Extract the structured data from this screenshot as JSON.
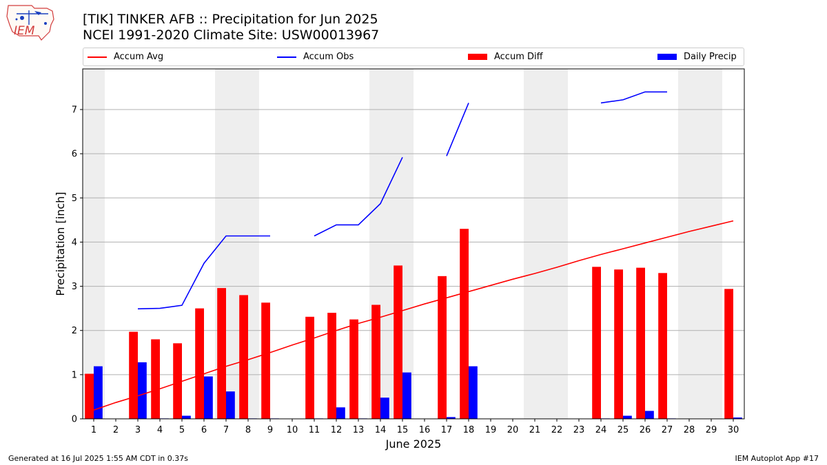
{
  "header": {
    "title": "[TIK] TINKER AFB :: Precipitation for Jun 2025",
    "subtitle": "NCEI 1991-2020 Climate Site: USW00013967",
    "logo_text": "IEM"
  },
  "footer": {
    "generated": "Generated at 16 Jul 2025 1:55 AM CDT in 0.37s",
    "app": "IEM Autoplot App #17"
  },
  "colors": {
    "accum_avg": "#ff0000",
    "accum_obs": "#0000ff",
    "accum_diff": "#ff0000",
    "daily_precip": "#0000ff",
    "weekend_shade": "#eeeeee",
    "grid": "#b0b0b0"
  },
  "chart_data": {
    "type": "bar",
    "xlabel": "June 2025",
    "ylabel": "Precipitation [inch]",
    "xlim": [
      0.5,
      30.5
    ],
    "ylim": [
      0,
      7.92
    ],
    "yticks": [
      0,
      1,
      2,
      3,
      4,
      5,
      6,
      7
    ],
    "grid": "horizontal",
    "legend_placement": "top, above plot",
    "categories": [
      1,
      2,
      3,
      4,
      5,
      6,
      7,
      8,
      9,
      10,
      11,
      12,
      13,
      14,
      15,
      16,
      17,
      18,
      19,
      20,
      21,
      22,
      23,
      24,
      25,
      26,
      27,
      28,
      29,
      30
    ],
    "shaded_days": [
      1,
      7,
      8,
      14,
      15,
      21,
      22,
      28,
      29
    ],
    "series": [
      {
        "name": "Accum Avg",
        "kind": "line",
        "color": "#ff0000",
        "values": [
          0.2,
          0.37,
          0.52,
          0.68,
          0.85,
          1.02,
          1.19,
          1.34,
          1.5,
          1.67,
          1.83,
          2.0,
          2.16,
          2.3,
          2.45,
          2.6,
          2.74,
          2.88,
          3.02,
          3.16,
          3.29,
          3.43,
          3.58,
          3.72,
          3.85,
          3.98,
          4.11,
          4.24,
          4.36,
          4.48
        ]
      },
      {
        "name": "Accum Obs",
        "kind": "line",
        "color": "#0000ff",
        "values": [
          null,
          null,
          2.49,
          2.5,
          2.57,
          3.52,
          4.14,
          4.14,
          4.14,
          null,
          4.14,
          4.39,
          4.39,
          4.87,
          5.92,
          null,
          5.95,
          7.15,
          null,
          null,
          null,
          null,
          null,
          7.15,
          7.22,
          7.4,
          7.4,
          null,
          null,
          null
        ]
      },
      {
        "name": "Accum Diff",
        "kind": "bar",
        "color": "#ff0000",
        "values": [
          1.02,
          0,
          1.97,
          1.8,
          1.71,
          2.5,
          2.96,
          2.8,
          2.63,
          0,
          2.31,
          2.4,
          2.25,
          2.58,
          3.47,
          0,
          3.23,
          4.3,
          0,
          0,
          0,
          0,
          0,
          3.44,
          3.38,
          3.42,
          3.3,
          0,
          0,
          2.94
        ]
      },
      {
        "name": "Daily Precip",
        "kind": "bar",
        "color": "#0000ff",
        "values": [
          1.19,
          0,
          1.28,
          0.01,
          0.07,
          0.96,
          0.62,
          0.01,
          0.01,
          0,
          0.01,
          0.26,
          0.01,
          0.48,
          1.05,
          0,
          0.04,
          1.19,
          0,
          0,
          0,
          0,
          0,
          0.01,
          0.07,
          0.18,
          0.01,
          0,
          0,
          0.03
        ]
      }
    ]
  }
}
